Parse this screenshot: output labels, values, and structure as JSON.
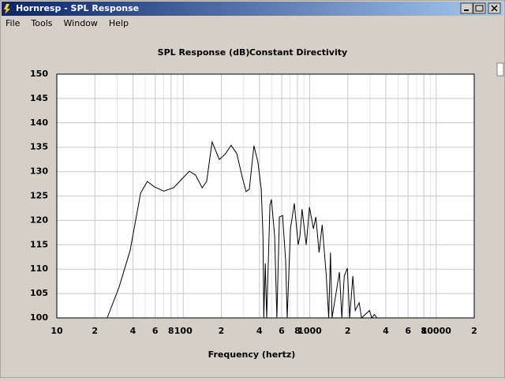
{
  "window": {
    "title": "Hornresp - SPL Response",
    "menu": [
      "File",
      "Tools",
      "Window",
      "Help"
    ]
  },
  "chart_data": {
    "type": "line",
    "title": "SPL Response (dB)",
    "subtitle": "Constant Directivity",
    "xlabel": "Frequency (hertz)",
    "log_x": true,
    "grid": true,
    "color": "#000000",
    "xlim": [
      10,
      20000
    ],
    "ylim": [
      100,
      150
    ],
    "xticks": [
      10,
      {
        "value": 20,
        "label": "2"
      },
      {
        "value": 40,
        "label": "4"
      },
      {
        "value": 60,
        "label": "6"
      },
      {
        "value": 80,
        "label": "8"
      },
      100,
      {
        "value": 200,
        "label": "2"
      },
      {
        "value": 400,
        "label": "4"
      },
      {
        "value": 600,
        "label": "6"
      },
      {
        "value": 800,
        "label": "8"
      },
      1000,
      {
        "value": 2000,
        "label": "2"
      },
      {
        "value": 4000,
        "label": "4"
      },
      {
        "value": 6000,
        "label": "6"
      },
      {
        "value": 8000,
        "label": "8"
      },
      10000,
      {
        "value": 20000,
        "label": "2"
      }
    ],
    "x_minor_ticks": [
      30,
      50,
      70,
      90,
      300,
      500,
      700,
      900,
      3000,
      5000,
      7000,
      9000
    ],
    "yticks": [
      100,
      105,
      110,
      115,
      120,
      125,
      130,
      135,
      140,
      145,
      150
    ],
    "x": [
      25,
      31,
      38,
      46,
      52,
      59,
      70,
      84,
      100,
      112,
      125,
      141,
      153,
      169,
      193,
      216,
      239,
      265,
      293,
      314,
      333,
      362,
      389,
      414,
      427,
      433,
      445,
      457,
      485,
      498,
      528,
      550,
      576,
      610,
      645,
      664,
      704,
      756,
      811,
      835,
      870,
      938,
      995,
      1070,
      1118,
      1186,
      1254,
      1350,
      1414,
      1460,
      1502,
      1621,
      1718,
      1794,
      1875,
      1985,
      2070,
      2194,
      2290,
      2460,
      2570,
      2970,
      3100,
      3250,
      3400
    ],
    "values": [
      100,
      106.2,
      113.8,
      125.6,
      128,
      126.9,
      126,
      126.7,
      128.8,
      130.1,
      129.3,
      126.7,
      128,
      136.1,
      132.5,
      133.7,
      135.4,
      133.7,
      128.8,
      125.9,
      126.4,
      135.3,
      132,
      126.4,
      116.7,
      100,
      111.2,
      100,
      123.1,
      124.3,
      116.7,
      100,
      120.7,
      121,
      111.8,
      100,
      118.3,
      123.5,
      115,
      116.7,
      122.3,
      115,
      122.7,
      118.3,
      120.7,
      113.4,
      119.1,
      108.9,
      100,
      113.4,
      100,
      105.3,
      109.4,
      100,
      108.6,
      110.2,
      100,
      108.6,
      101.5,
      103.1,
      100,
      101.5,
      100,
      100.7,
      100
    ]
  }
}
